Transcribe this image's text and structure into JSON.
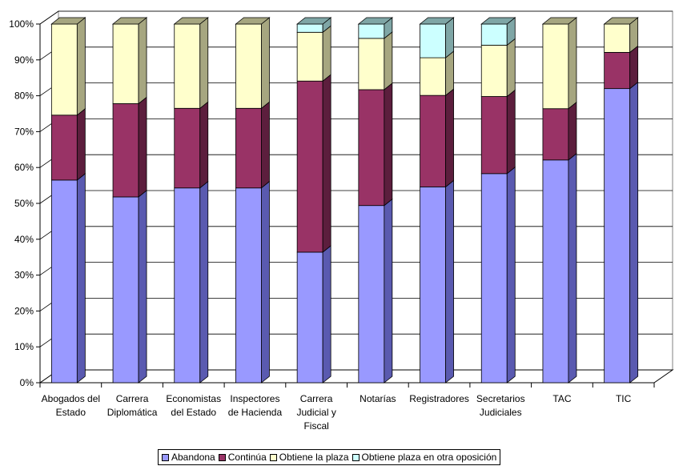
{
  "chart_data": {
    "type": "bar",
    "stacked": true,
    "percent_stacked": true,
    "three_d": true,
    "title": "",
    "xlabel": "",
    "ylabel": "",
    "ylim": [
      0,
      100
    ],
    "yticks": [
      "0%",
      "10%",
      "20%",
      "30%",
      "40%",
      "50%",
      "60%",
      "70%",
      "80%",
      "90%",
      "100%"
    ],
    "categories": [
      [
        "Abogados del",
        "Estado"
      ],
      [
        "Carrera",
        "Diplomática"
      ],
      [
        "Economistas",
        "del Estado"
      ],
      [
        "Inspectores",
        "de Hacienda"
      ],
      [
        "Carrera",
        "Judicial y",
        "Fiscal"
      ],
      [
        "Notarías"
      ],
      [
        "Registradores"
      ],
      [
        "Secretarios",
        "Judiciales"
      ],
      [
        "TAC"
      ],
      [
        "TIC"
      ]
    ],
    "series": [
      {
        "name": "Abandona",
        "color": "#9999FF",
        "side": "#5A5AB0",
        "values": [
          56.5,
          51.8,
          54.3,
          54.3,
          36.4,
          49.4,
          54.6,
          58.3,
          62.1,
          82.0
        ]
      },
      {
        "name": "Continúa",
        "color": "#993366",
        "side": "#5C1E3D",
        "values": [
          18.1,
          26.0,
          22.2,
          22.2,
          47.7,
          32.3,
          25.5,
          21.5,
          14.3,
          10.1
        ]
      },
      {
        "name": "Obtiene la plaza",
        "color": "#FFFFCC",
        "side": "#A6A680",
        "values": [
          25.4,
          22.2,
          23.5,
          23.5,
          13.6,
          14.3,
          10.5,
          14.3,
          23.6,
          7.9
        ]
      },
      {
        "name": "Obtiene plaza en otra oposición",
        "color": "#CCFFFF",
        "side": "#7FA6A6",
        "values": [
          0.0,
          0.0,
          0.0,
          0.0,
          2.3,
          4.0,
          9.4,
          5.9,
          0.0,
          0.0
        ]
      }
    ],
    "legend_position": "bottom"
  }
}
